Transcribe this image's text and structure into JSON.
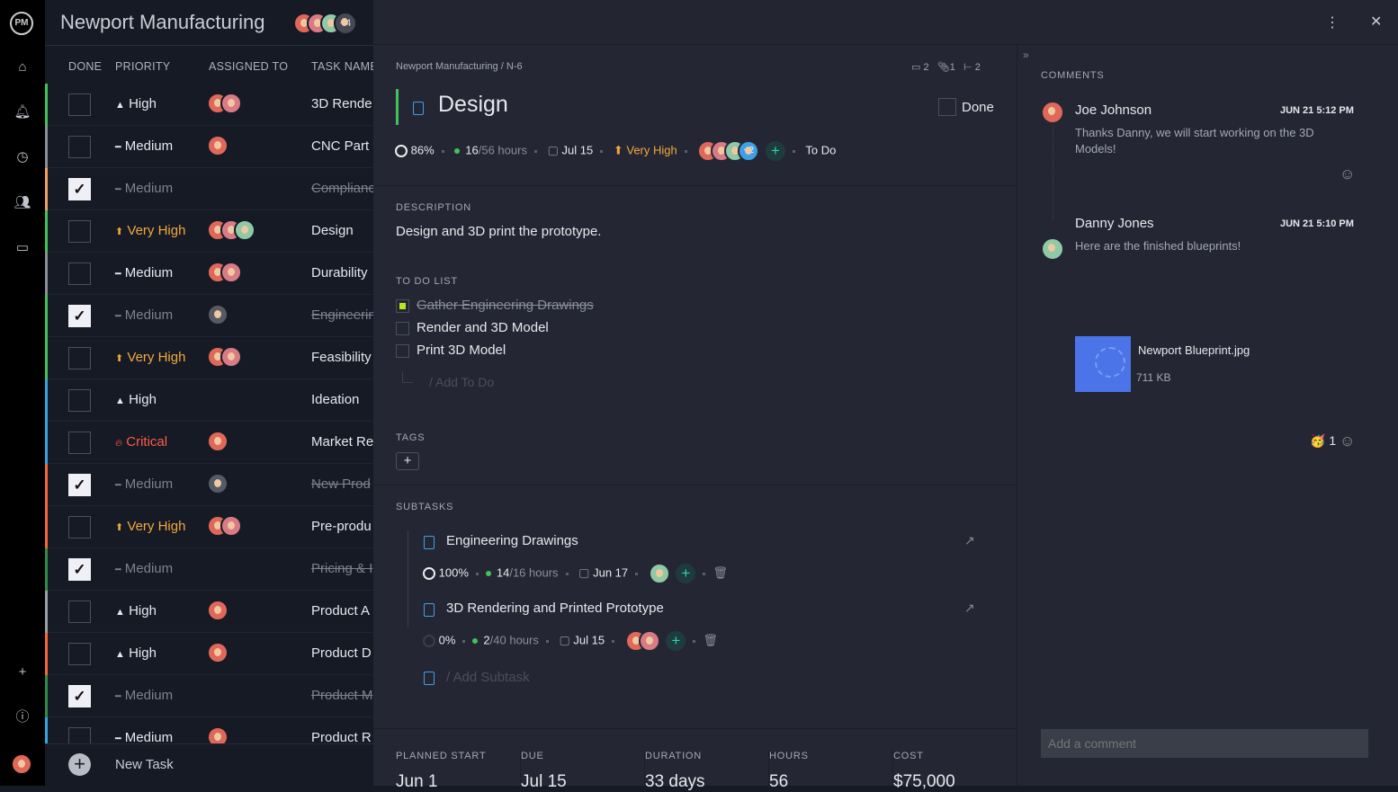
{
  "app": {
    "logo": "PM",
    "project_title": "Newport Manufacturing",
    "extra_members": "+4"
  },
  "rail": {
    "icons": [
      "home-icon",
      "bell-icon",
      "clock-icon",
      "users-icon",
      "briefcase-icon",
      "plus-icon",
      "help-icon"
    ]
  },
  "list": {
    "columns": [
      "DONE",
      "PRIORITY",
      "ASSIGNED TO",
      "TASK NAME"
    ],
    "rows": [
      {
        "done": false,
        "priority": "High",
        "kind": "hi",
        "avatars": 2,
        "task": "3D Rende",
        "bar": "#3fc35a"
      },
      {
        "done": false,
        "priority": "Medium",
        "kind": "md",
        "avatars": 1,
        "task": "CNC Part",
        "bar": "#8a8e98"
      },
      {
        "done": true,
        "priority": "Medium",
        "kind": "md",
        "avatars": 0,
        "task": "Complianc",
        "bar": "#f2a060"
      },
      {
        "done": false,
        "priority": "Very High",
        "kind": "vh",
        "avatars": 3,
        "task": "Design",
        "bar": "#3fc35a"
      },
      {
        "done": false,
        "priority": "Medium",
        "kind": "md",
        "avatars": 2,
        "task": "Durability",
        "bar": "#8a8e98"
      },
      {
        "done": true,
        "priority": "Medium",
        "kind": "md",
        "avatars": 1,
        "task": "Engineerin",
        "bar": "#3fc35a"
      },
      {
        "done": false,
        "priority": "Very High",
        "kind": "vh",
        "avatars": 2,
        "task": "Feasibility",
        "bar": "#3fc35a"
      },
      {
        "done": false,
        "priority": "High",
        "kind": "hi",
        "avatars": 0,
        "task": "Ideation",
        "bar": "#2fa8e0"
      },
      {
        "done": false,
        "priority": "Critical",
        "kind": "cr",
        "avatars": 1,
        "task": "Market Re",
        "bar": "#2fa8e0"
      },
      {
        "done": true,
        "priority": "Medium",
        "kind": "md",
        "avatars": 1,
        "task": "New Prod",
        "bar": "#f26a2e"
      },
      {
        "done": false,
        "priority": "Very High",
        "kind": "vh",
        "avatars": 2,
        "task": "Pre-produ",
        "bar": "#f26a2e"
      },
      {
        "done": true,
        "priority": "Medium",
        "kind": "md",
        "avatars": 0,
        "task": "Pricing & I",
        "bar": "#2e8b4a"
      },
      {
        "done": false,
        "priority": "High",
        "kind": "hi",
        "avatars": 1,
        "task": "Product A",
        "bar": "#9aa0aa"
      },
      {
        "done": false,
        "priority": "High",
        "kind": "hi",
        "avatars": 1,
        "task": "Product D",
        "bar": "#f26a2e"
      },
      {
        "done": true,
        "priority": "Medium",
        "kind": "md",
        "avatars": 0,
        "task": "Product M",
        "bar": "#2e8b4a"
      },
      {
        "done": false,
        "priority": "Medium",
        "kind": "md",
        "avatars": 1,
        "task": "Product R",
        "bar": "#2fa8e0"
      }
    ],
    "new_task": "New Task"
  },
  "detail": {
    "breadcrumb": "Newport Manufacturing  /  N-6",
    "counts": {
      "comments": "2",
      "attachments": "1",
      "subtasks": "2"
    },
    "title": "Design",
    "done_label": "Done",
    "progress": "86%",
    "hours_done": "16",
    "hours_total": "/56 hours",
    "due": "Jul 15",
    "priority": "Very High",
    "extra_assignees": "+2",
    "status": "To Do",
    "description_label": "DESCRIPTION",
    "description": "Design and 3D print the prototype.",
    "todo_label": "TO DO LIST",
    "todos": [
      {
        "text": "Gather Engineering Drawings",
        "done": true
      },
      {
        "text": "Render and 3D Model",
        "done": false
      },
      {
        "text": "Print 3D Model",
        "done": false
      }
    ],
    "add_todo": "/ Add To Do",
    "tags_label": "TAGS",
    "subtasks_label": "SUBTASKS",
    "subtasks": [
      {
        "name": "Engineering Drawings",
        "progress": "100%",
        "hours_done": "14",
        "hours_total": "/16 hours",
        "due": "Jun 17"
      },
      {
        "name": "3D Rendering and Printed Prototype",
        "progress": "0%",
        "hours_done": "2",
        "hours_total": "/40 hours",
        "due": "Jul 15"
      }
    ],
    "add_subtask": "/ Add Subtask",
    "stats": [
      {
        "label": "PLANNED START",
        "value": "Jun 1"
      },
      {
        "label": "DUE",
        "value": "Jul 15"
      },
      {
        "label": "DURATION",
        "value": "33 days"
      },
      {
        "label": "HOURS",
        "value": "56"
      },
      {
        "label": "COST",
        "value": "$75,000"
      }
    ]
  },
  "comments": {
    "label": "COMMENTS",
    "items": [
      {
        "author": "Joe Johnson",
        "time": "JUN 21 5:12 PM",
        "text": "Thanks Danny, we will start working on the 3D Models!"
      },
      {
        "author": "Danny Jones",
        "time": "JUN 21 5:10 PM",
        "text": "Here are the finished blueprints!"
      }
    ],
    "attachment": {
      "name": "Newport Blueprint.jpg",
      "size": "711 KB"
    },
    "reaction_count": "1",
    "placeholder": "Add a comment"
  },
  "colors": {
    "accent_green": "#3fc35a",
    "very_high": "#f2a93b",
    "critical": "#ff5a4a",
    "teal": "#2ed1b2",
    "blue": "#3da0e8"
  }
}
